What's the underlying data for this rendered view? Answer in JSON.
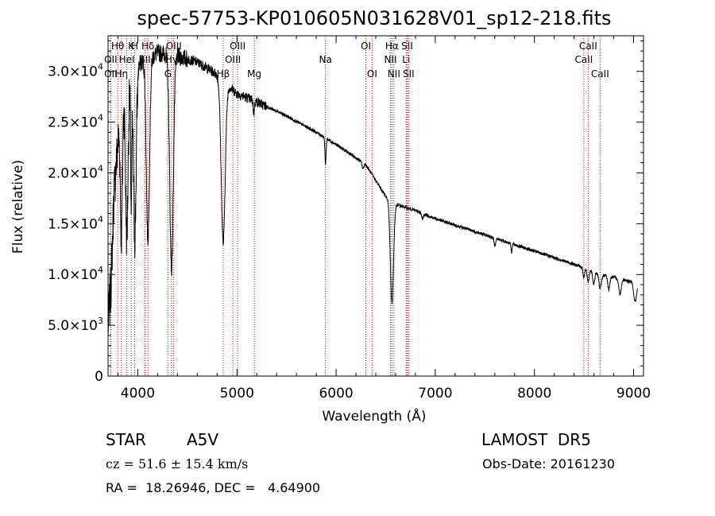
{
  "chart_data": {
    "type": "line",
    "title": "spec-57753-KP010605N031628V01_sp12-218.fits",
    "xlabel": "Wavelength (Å)",
    "ylabel": "Flux (relative)",
    "xlim": [
      3700,
      9100
    ],
    "ylim": [
      0,
      33500
    ],
    "x_ticks": [
      4000,
      5000,
      6000,
      7000,
      8000,
      9000
    ],
    "x_tick_labels": [
      "4000",
      "5000",
      "6000",
      "7000",
      "8000",
      "9000"
    ],
    "y_ticks": [
      0,
      5000,
      10000,
      15000,
      20000,
      25000,
      30000
    ],
    "y_tick_labels": [
      {
        "mant": "0",
        "exp": ""
      },
      {
        "mant": "5.0×10",
        "exp": "3"
      },
      {
        "mant": "1.0×10",
        "exp": "4"
      },
      {
        "mant": "1.5×10",
        "exp": "4"
      },
      {
        "mant": "2.0×10",
        "exp": "4"
      },
      {
        "mant": "2.5×10",
        "exp": "4"
      },
      {
        "mant": "3.0×10",
        "exp": "4"
      }
    ],
    "grid": false,
    "line_color": "#000000",
    "marker_color": "#c00000",
    "spectrum": {
      "continuum": [
        [
          3700,
          5000
        ],
        [
          3730,
          9000
        ],
        [
          3760,
          18000
        ],
        [
          3800,
          23000
        ],
        [
          3850,
          27000
        ],
        [
          3900,
          28000
        ],
        [
          3950,
          29500
        ],
        [
          4000,
          30500
        ],
        [
          4050,
          31000
        ],
        [
          4100,
          31500
        ],
        [
          4150,
          31500
        ],
        [
          4200,
          31800
        ],
        [
          4300,
          31700
        ],
        [
          4400,
          31500
        ],
        [
          4500,
          31200
        ],
        [
          4600,
          30900
        ],
        [
          4700,
          30300
        ],
        [
          4800,
          29700
        ],
        [
          4900,
          28700
        ],
        [
          5000,
          27800
        ],
        [
          5200,
          27000
        ],
        [
          5500,
          25600
        ],
        [
          5800,
          24000
        ],
        [
          6000,
          22800
        ],
        [
          6300,
          20800
        ],
        [
          6500,
          17700
        ],
        [
          6600,
          16900
        ],
        [
          6800,
          16300
        ],
        [
          7000,
          15500
        ],
        [
          7500,
          13900
        ],
        [
          8000,
          12300
        ],
        [
          8400,
          11000
        ],
        [
          8700,
          9900
        ],
        [
          8900,
          9500
        ],
        [
          9000,
          9200
        ],
        [
          9040,
          9000
        ]
      ],
      "absorption_lines": [
        {
          "center": 3835,
          "depth": 12000,
          "width": 10
        },
        {
          "center": 3889,
          "depth": 14000,
          "width": 12
        },
        {
          "center": 3934,
          "depth": 12000,
          "width": 6
        },
        {
          "center": 3970,
          "depth": 16000,
          "width": 14
        },
        {
          "center": 4102,
          "depth": 18000,
          "width": 16
        },
        {
          "center": 4340,
          "depth": 21000,
          "width": 18
        },
        {
          "center": 4861,
          "depth": 16000,
          "width": 20
        },
        {
          "center": 5170,
          "depth": 1200,
          "width": 6
        },
        {
          "center": 5893,
          "depth": 2500,
          "width": 6
        },
        {
          "center": 6270,
          "depth": 600,
          "width": 8
        },
        {
          "center": 6563,
          "depth": 10000,
          "width": 16
        },
        {
          "center": 6870,
          "depth": 600,
          "width": 8
        },
        {
          "center": 7600,
          "depth": 700,
          "width": 8
        },
        {
          "center": 7770,
          "depth": 900,
          "width": 5
        },
        {
          "center": 8498,
          "depth": 900,
          "width": 8
        },
        {
          "center": 8542,
          "depth": 1200,
          "width": 10
        },
        {
          "center": 8598,
          "depth": 1200,
          "width": 10
        },
        {
          "center": 8662,
          "depth": 1400,
          "width": 12
        },
        {
          "center": 8750,
          "depth": 1300,
          "width": 10
        },
        {
          "center": 8863,
          "depth": 1500,
          "width": 12
        },
        {
          "center": 9015,
          "depth": 1800,
          "width": 14
        }
      ]
    },
    "line_markers": [
      {
        "label": "Hθ",
        "wave": 3798,
        "row": 1
      },
      {
        "label": "OII",
        "wave": 3727,
        "row": 2
      },
      {
        "label": "OII",
        "wave": 3727,
        "row": 3
      },
      {
        "label": "Hη",
        "wave": 3835,
        "row": 3
      },
      {
        "label": "HeI",
        "wave": 3889,
        "row": 2
      },
      {
        "label": "K",
        "wave": 3934,
        "row": 1
      },
      {
        "label": "H",
        "wave": 3969,
        "row": 1
      },
      {
        "label": "SII",
        "wave": 4072,
        "row": 2
      },
      {
        "label": "Hδ",
        "wave": 4102,
        "row": 1
      },
      {
        "label": "G",
        "wave": 4304,
        "row": 3
      },
      {
        "label": "OIII",
        "wave": 4363,
        "row": 1
      },
      {
        "label": "Hγ",
        "wave": 4340,
        "row": 2
      },
      {
        "label": "Hβ",
        "wave": 4861,
        "row": 3
      },
      {
        "label": "OIII",
        "wave": 4959,
        "row": 2
      },
      {
        "label": "OIII",
        "wave": 5007,
        "row": 1
      },
      {
        "label": "Mg",
        "wave": 5175,
        "row": 3
      },
      {
        "label": "Na",
        "wave": 5893,
        "row": 2
      },
      {
        "label": "OI",
        "wave": 6300,
        "row": 1
      },
      {
        "label": "OI",
        "wave": 6363,
        "row": 3
      },
      {
        "label": "NII",
        "wave": 6548,
        "row": 2
      },
      {
        "label": "Hα",
        "wave": 6563,
        "row": 1
      },
      {
        "label": "NII",
        "wave": 6583,
        "row": 3
      },
      {
        "label": "Li",
        "wave": 6707,
        "row": 2
      },
      {
        "label": "SII",
        "wave": 6716,
        "row": 1
      },
      {
        "label": "SII",
        "wave": 6731,
        "row": 3
      },
      {
        "label": "CaII",
        "wave": 8498,
        "row": 2
      },
      {
        "label": "CaII",
        "wave": 8542,
        "row": 1
      },
      {
        "label": "CaII",
        "wave": 8662,
        "row": 3
      }
    ]
  },
  "info": {
    "class_label": "STAR",
    "subclass": "A5V",
    "survey": "LAMOST  DR5",
    "redshift": "cz = 51.6 ± 15.4 km/s",
    "obs_date": "Obs-Date: 20161230",
    "coords": "RA =  18.26946, DEC =   4.64900"
  }
}
